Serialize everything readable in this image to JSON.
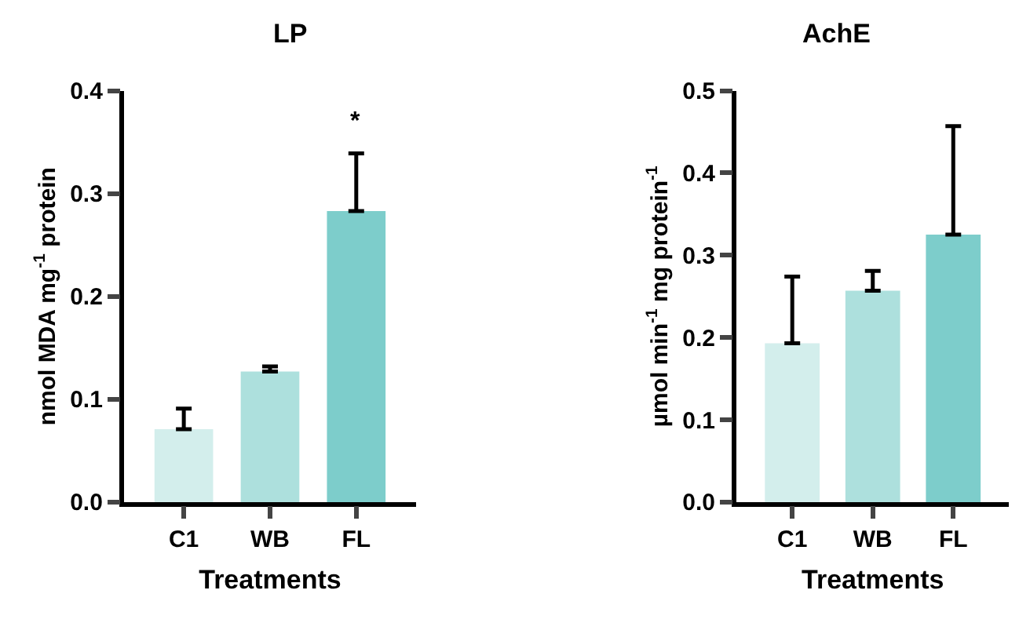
{
  "chart_data": [
    {
      "type": "bar",
      "title": "LP",
      "xlabel": "Treatments",
      "ylabel": "nmol MDA mg$^{-1}$ protein",
      "categories": [
        "C1",
        "WB",
        "FL"
      ],
      "values": [
        0.071,
        0.127,
        0.283
      ],
      "colors": [
        "#d3eeec",
        "#ade0dd",
        "#7dcdcb"
      ],
      "errors": [
        [
          0.071,
          0.091
        ],
        [
          0.127,
          0.132
        ],
        [
          0.283,
          0.339
        ]
      ],
      "annotations": [
        "*"
      ],
      "ylim": [
        0,
        0.4
      ],
      "yticks": [
        {
          "value": 0,
          "label": "0.0"
        },
        0.1,
        0.2,
        0.3,
        0.4
      ]
    },
    {
      "type": "bar",
      "title": "AchE",
      "xlabel": "Treatments",
      "ylabel": "µmol min$^{-1}$ mg protein$^{-1}$",
      "categories": [
        "C1",
        "WB",
        "FL"
      ],
      "values": [
        0.193,
        0.257,
        0.325
      ],
      "colors": [
        "#d3eeec",
        "#ade0dd",
        "#7dcdcb"
      ],
      "errors": [
        [
          0.193,
          0.274
        ],
        [
          0.257,
          0.281
        ],
        [
          0.325,
          0.457
        ]
      ],
      "ylim": [
        0,
        0.5
      ],
      "yticks": [
        {
          "value": 0,
          "label": "0.0"
        },
        0.1,
        0.2,
        0.3,
        0.4,
        0.5
      ]
    }
  ]
}
